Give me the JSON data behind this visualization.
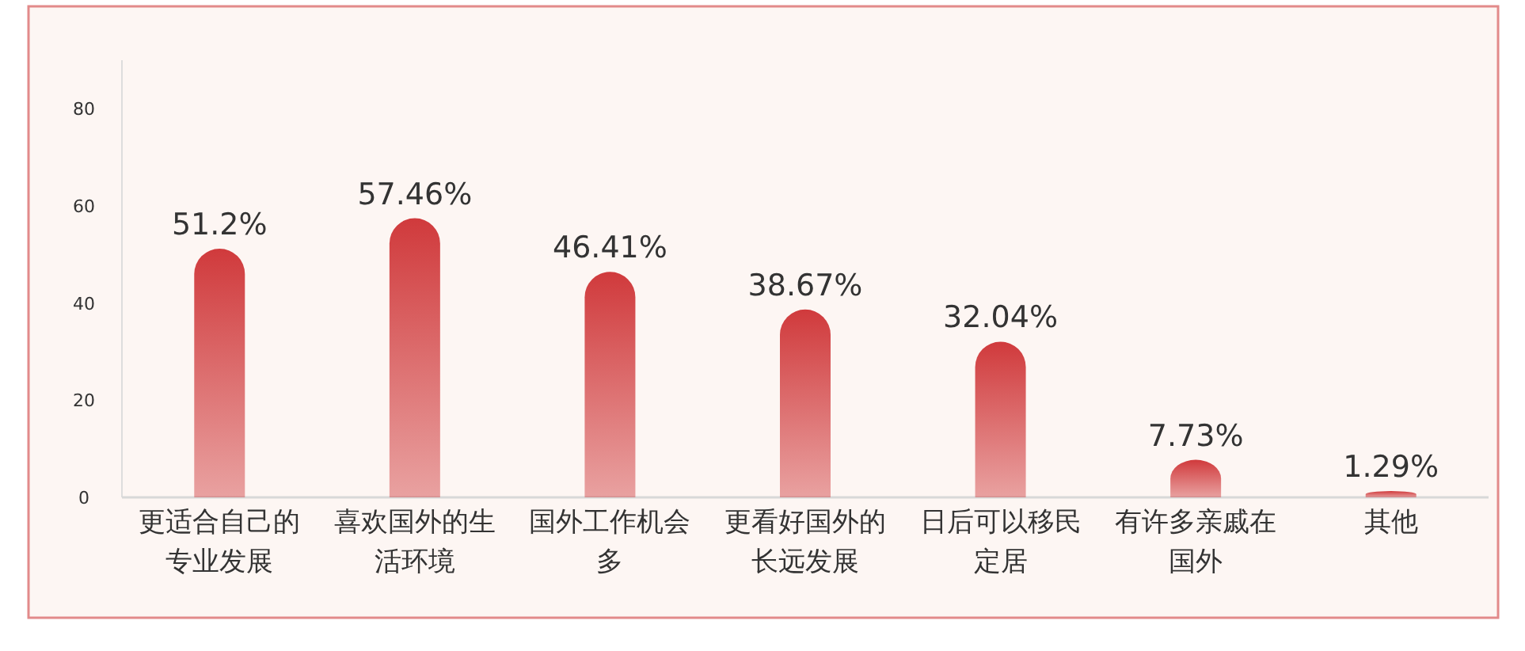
{
  "chart_data": {
    "type": "bar",
    "categories": [
      "更适合自己的专业发展",
      "喜欢国外的生活环境",
      "国外工作机会多",
      "更看好国外的长远发展",
      "日后可以移民定居",
      "有许多亲戚在国外",
      "其他"
    ],
    "values": [
      51.2,
      57.46,
      46.41,
      38.67,
      32.04,
      7.73,
      1.29
    ],
    "value_labels": [
      "51.2%",
      "57.46%",
      "46.41%",
      "38.67%",
      "32.04%",
      "7.73%",
      "1.29%"
    ],
    "color": "#d03a3c",
    "ylim": [
      0,
      90
    ],
    "yticks": [
      0,
      20,
      40,
      60,
      80
    ],
    "grid": false
  }
}
